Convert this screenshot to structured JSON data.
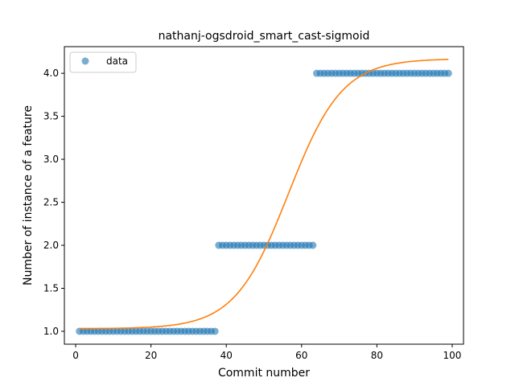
{
  "chart_data": {
    "type": "scatter",
    "title": "nathanj-ogsdroid_smart_cast-sigmoid",
    "xlabel": "Commit number",
    "ylabel": "Number of instance of a feature",
    "xlim": [
      -3,
      103
    ],
    "ylim": [
      0.85,
      4.31
    ],
    "x_ticks": [
      0,
      20,
      40,
      60,
      80,
      100
    ],
    "y_ticks": [
      1.0,
      1.5,
      2.0,
      2.5,
      3.0,
      3.5,
      4.0
    ],
    "x_tick_labels": [
      "0",
      "20",
      "40",
      "60",
      "80",
      "100"
    ],
    "y_tick_labels": [
      "1.0",
      "1.5",
      "2.0",
      "2.5",
      "3.0",
      "3.5",
      "4.0"
    ],
    "grid": false,
    "legend": {
      "position": "top-left",
      "entries": [
        "data"
      ]
    },
    "series": [
      {
        "name": "data",
        "kind": "scatter",
        "color": "#1f77b4",
        "segments": [
          {
            "x_from": 1,
            "x_to": 37,
            "y": 1.0
          },
          {
            "x_from": 38,
            "x_to": 63,
            "y": 2.0
          },
          {
            "x_from": 64,
            "x_to": 99,
            "y": 4.0
          }
        ]
      },
      {
        "kind": "line",
        "color": "#ff7f0e",
        "sigmoid": {
          "lower": 1.03,
          "upper": 4.17,
          "midpoint": 56.5,
          "slope": 0.14,
          "x_from": 1,
          "x_to": 99
        }
      }
    ]
  }
}
